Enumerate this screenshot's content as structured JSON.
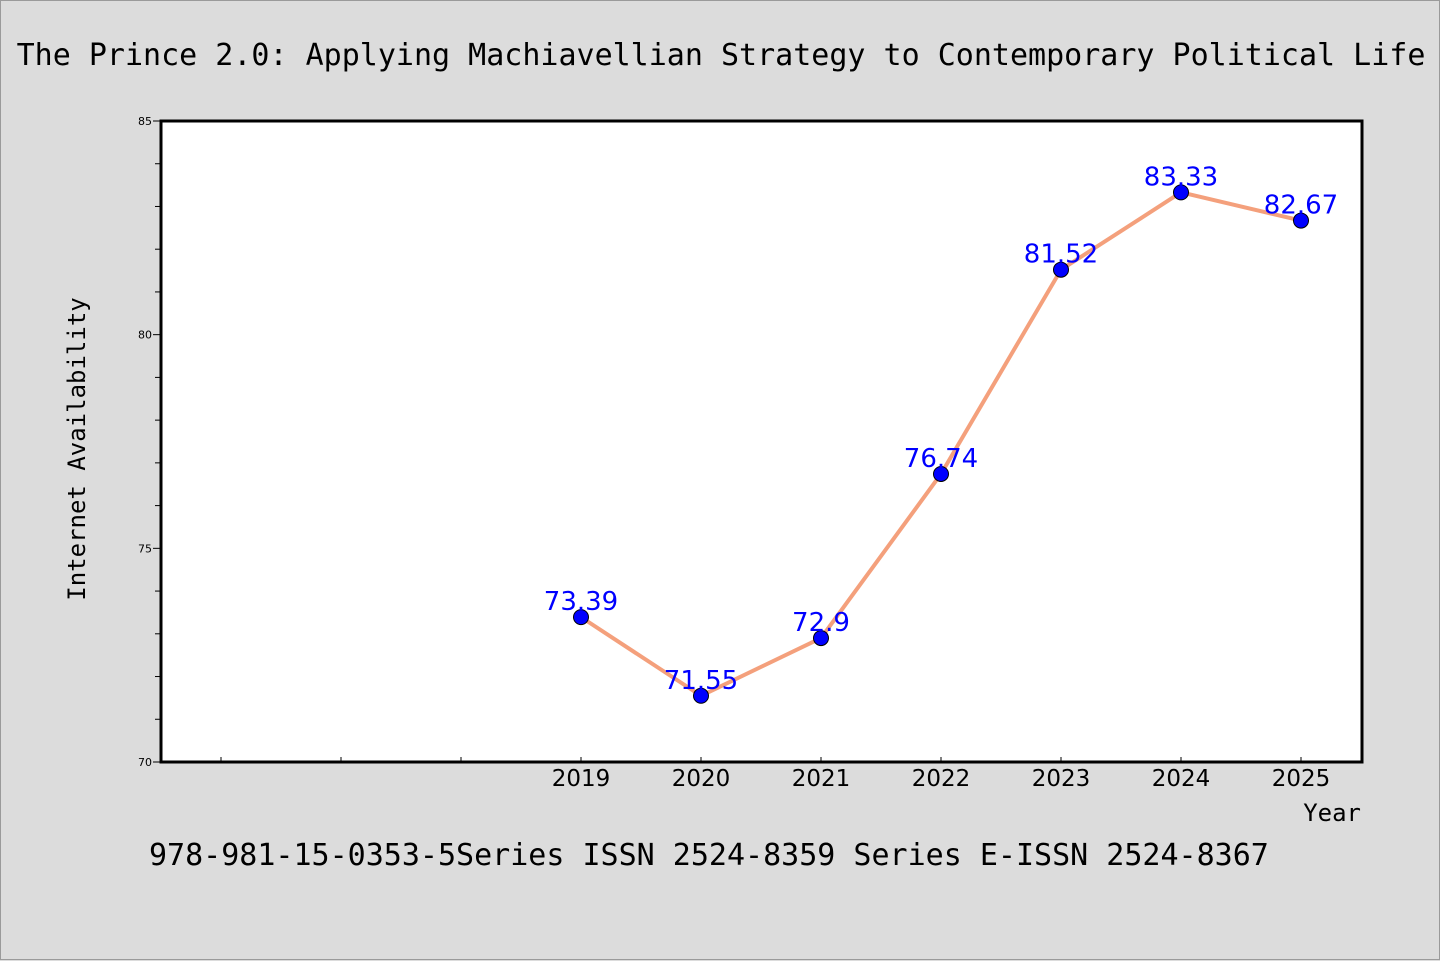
{
  "chart_data": {
    "type": "line",
    "title": "The Prince 2.0: Applying Machiavellian Strategy to Contemporary Political Life",
    "xlabel": "Year",
    "ylabel": "Internet Availability",
    "categories": [
      "2019",
      "2020",
      "2021",
      "2022",
      "2023",
      "2024",
      "2025"
    ],
    "series": [
      {
        "values": [
          73.39,
          71.55,
          72.9,
          76.74,
          81.52,
          83.33,
          82.67
        ],
        "labels": [
          "73.39",
          "71.55",
          "72.9",
          "76.74",
          "81.52",
          "83.33",
          "82.67"
        ]
      }
    ],
    "x_slots": 10,
    "ylim": [
      70,
      85
    ],
    "yticks": [
      "70",
      "75",
      "80",
      "85"
    ],
    "grid": false,
    "line_color": "#f4a07c",
    "marker_color": "#0000ff",
    "label_color": "#0000ff"
  },
  "footer": "978-981-15-0353-5Series ISSN 2524-8359 Series E-ISSN 2524-8367"
}
